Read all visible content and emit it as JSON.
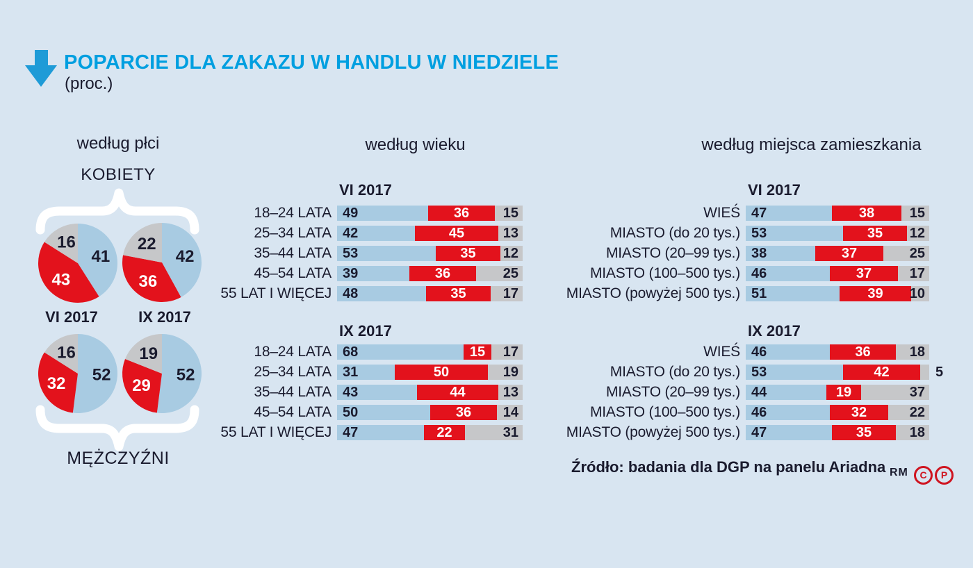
{
  "header": {
    "title": "POPARCIE DLA ZAKAZU W HANDLU W NIEDZIELE",
    "unit_label": "(proc.)"
  },
  "colors": {
    "background": "#d8e5f1",
    "bar_blue": "#a8cbe2",
    "bar_red": "#e3121c",
    "bar_gray": "#c6c7c9",
    "title_blue": "#009fe0",
    "arrow_blue": "#1e9bd7",
    "text_dark": "#1a1b2e",
    "value_on_red": "#ffffff",
    "brace_white": "#ffffff",
    "footer_icon_red": "#cf1420"
  },
  "chart_data": [
    {
      "type": "pie",
      "heading": "według płci",
      "group_labels": {
        "top": "KOBIETY",
        "bottom": "MĘŻCZYŹNI"
      },
      "period_labels": [
        "VI 2017",
        "IX 2017"
      ],
      "pies": [
        {
          "group": "KOBIETY",
          "period": "VI 2017",
          "blue": 41,
          "red": 43,
          "gray": 16
        },
        {
          "group": "KOBIETY",
          "period": "IX 2017",
          "blue": 42,
          "red": 36,
          "gray": 22
        },
        {
          "group": "MĘŻCZYŹNI",
          "period": "VI 2017",
          "blue": 52,
          "red": 32,
          "gray": 16
        },
        {
          "group": "MĘŻCZYŹNI",
          "period": "IX 2017",
          "blue": 52,
          "red": 29,
          "gray": 19
        }
      ]
    },
    {
      "type": "bar",
      "heading": "według wieku",
      "periods": [
        {
          "label": "VI 2017",
          "rows": [
            {
              "label": "18–24 LATA",
              "blue": 49,
              "red": 36,
              "gray": 15
            },
            {
              "label": "25–34 LATA",
              "blue": 42,
              "red": 45,
              "gray": 13
            },
            {
              "label": "35–44 LATA",
              "blue": 53,
              "red": 35,
              "gray": 12
            },
            {
              "label": "45–54 LATA",
              "blue": 39,
              "red": 36,
              "gray": 25
            },
            {
              "label": "55 LAT I WIĘCEJ",
              "blue": 48,
              "red": 35,
              "gray": 17
            }
          ]
        },
        {
          "label": "IX 2017",
          "rows": [
            {
              "label": "18–24 LATA",
              "blue": 68,
              "red": 15,
              "gray": 17
            },
            {
              "label": "25–34 LATA",
              "blue": 31,
              "red": 50,
              "gray": 19
            },
            {
              "label": "35–44 LATA",
              "blue": 43,
              "red": 44,
              "gray": 13
            },
            {
              "label": "45–54 LATA",
              "blue": 50,
              "red": 36,
              "gray": 14
            },
            {
              "label": "55 LAT I WIĘCEJ",
              "blue": 47,
              "red": 22,
              "gray": 31
            }
          ]
        }
      ]
    },
    {
      "type": "bar",
      "heading": "według miejsca zamieszkania",
      "periods": [
        {
          "label": "VI 2017",
          "rows": [
            {
              "label": "WIEŚ",
              "blue": 47,
              "red": 38,
              "gray": 15
            },
            {
              "label": "MIASTO (do 20 tys.)",
              "blue": 53,
              "red": 35,
              "gray": 12
            },
            {
              "label": "MIASTO (20–99 tys.)",
              "blue": 38,
              "red": 37,
              "gray": 25
            },
            {
              "label": "MIASTO (100–500 tys.)",
              "blue": 46,
              "red": 37,
              "gray": 17
            },
            {
              "label": "MIASTO (powyżej 500 tys.)",
              "blue": 51,
              "red": 39,
              "gray": 10
            }
          ]
        },
        {
          "label": "IX 2017",
          "rows": [
            {
              "label": "WIEŚ",
              "blue": 46,
              "red": 36,
              "gray": 18
            },
            {
              "label": "MIASTO (do 20 tys.)",
              "blue": 53,
              "red": 42,
              "gray": 5,
              "gray_label_outside": true
            },
            {
              "label": "MIASTO (20–99 tys.)",
              "blue": 44,
              "red": 19,
              "gray": 37
            },
            {
              "label": "MIASTO (100–500 tys.)",
              "blue": 46,
              "red": 32,
              "gray": 22
            },
            {
              "label": "MIASTO (powyżej 500 tys.)",
              "blue": 47,
              "red": 35,
              "gray": 18
            }
          ]
        }
      ]
    }
  ],
  "footer": {
    "source": "Źródło: badania dla DGP na panelu Ariadna",
    "credit": "RM",
    "icons": [
      "copyright-icon",
      "p-in-circle-icon"
    ]
  }
}
